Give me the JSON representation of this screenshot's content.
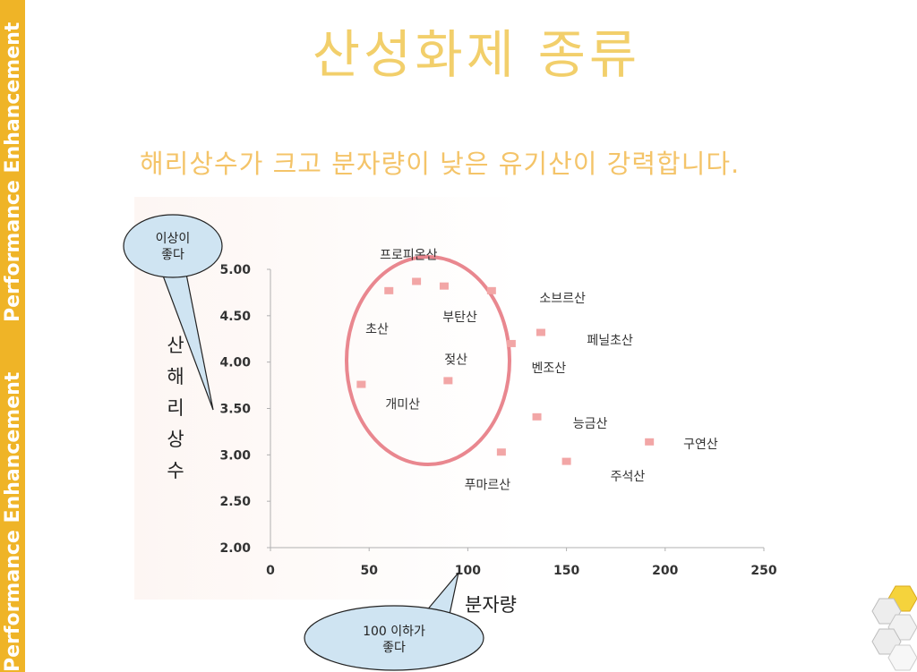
{
  "slide": {
    "side_text_top": "Performance Enhancement",
    "side_text_bottom": "Performance Enhancement",
    "title": "산성화제 종류",
    "subtitle": "해리상수가 크고 분자량이 낮은 유기산이 강력합니다.",
    "brand_color": "#efb427",
    "title_color": "#f2cf6b",
    "subtitle_color": "#f4c469",
    "bubble_y": "이상이\n좋다",
    "bubble_x": "100 이하가\n좋다"
  },
  "chart_data": {
    "type": "scatter",
    "title": "",
    "xlabel": "분자량",
    "ylabel": "산해리상수",
    "xlim": [
      0,
      250
    ],
    "ylim": [
      2.0,
      5.0
    ],
    "xticks": [
      "0",
      "50",
      "100",
      "150",
      "200",
      "250"
    ],
    "yticks": [
      "2.00",
      "2.50",
      "3.00",
      "3.50",
      "4.00",
      "4.50",
      "5.00"
    ],
    "grid": false,
    "marker_color": "#f2a6a6",
    "ellipse_color": "#e9878f",
    "points": [
      {
        "x": 46,
        "y": 3.76
      },
      {
        "x": 60,
        "y": 4.77
      },
      {
        "x": 74,
        "y": 4.87
      },
      {
        "x": 88,
        "y": 4.82
      },
      {
        "x": 90,
        "y": 3.8
      },
      {
        "x": 112,
        "y": 4.77
      },
      {
        "x": 117,
        "y": 3.03
      },
      {
        "x": 122,
        "y": 4.2
      },
      {
        "x": 135,
        "y": 3.41
      },
      {
        "x": 137,
        "y": 4.32
      },
      {
        "x": 150,
        "y": 2.93
      },
      {
        "x": 192,
        "y": 3.14
      }
    ],
    "labels": [
      {
        "text": "프로피온산",
        "x": 70,
        "y": 5.16
      },
      {
        "text": "소브르산",
        "x": 148,
        "y": 4.69
      },
      {
        "text": "부탄산",
        "x": 96,
        "y": 4.49
      },
      {
        "text": "초산",
        "x": 54,
        "y": 4.36
      },
      {
        "text": "페닐초산",
        "x": 172,
        "y": 4.24
      },
      {
        "text": "젖산",
        "x": 94,
        "y": 4.03
      },
      {
        "text": "벤조산",
        "x": 141,
        "y": 3.94
      },
      {
        "text": "개미산",
        "x": 67,
        "y": 3.55
      },
      {
        "text": "능금산",
        "x": 162,
        "y": 3.34
      },
      {
        "text": "구연산",
        "x": 218,
        "y": 3.12
      },
      {
        "text": "주석산",
        "x": 181,
        "y": 2.77
      },
      {
        "text": "푸마르산",
        "x": 110,
        "y": 2.68
      }
    ]
  }
}
